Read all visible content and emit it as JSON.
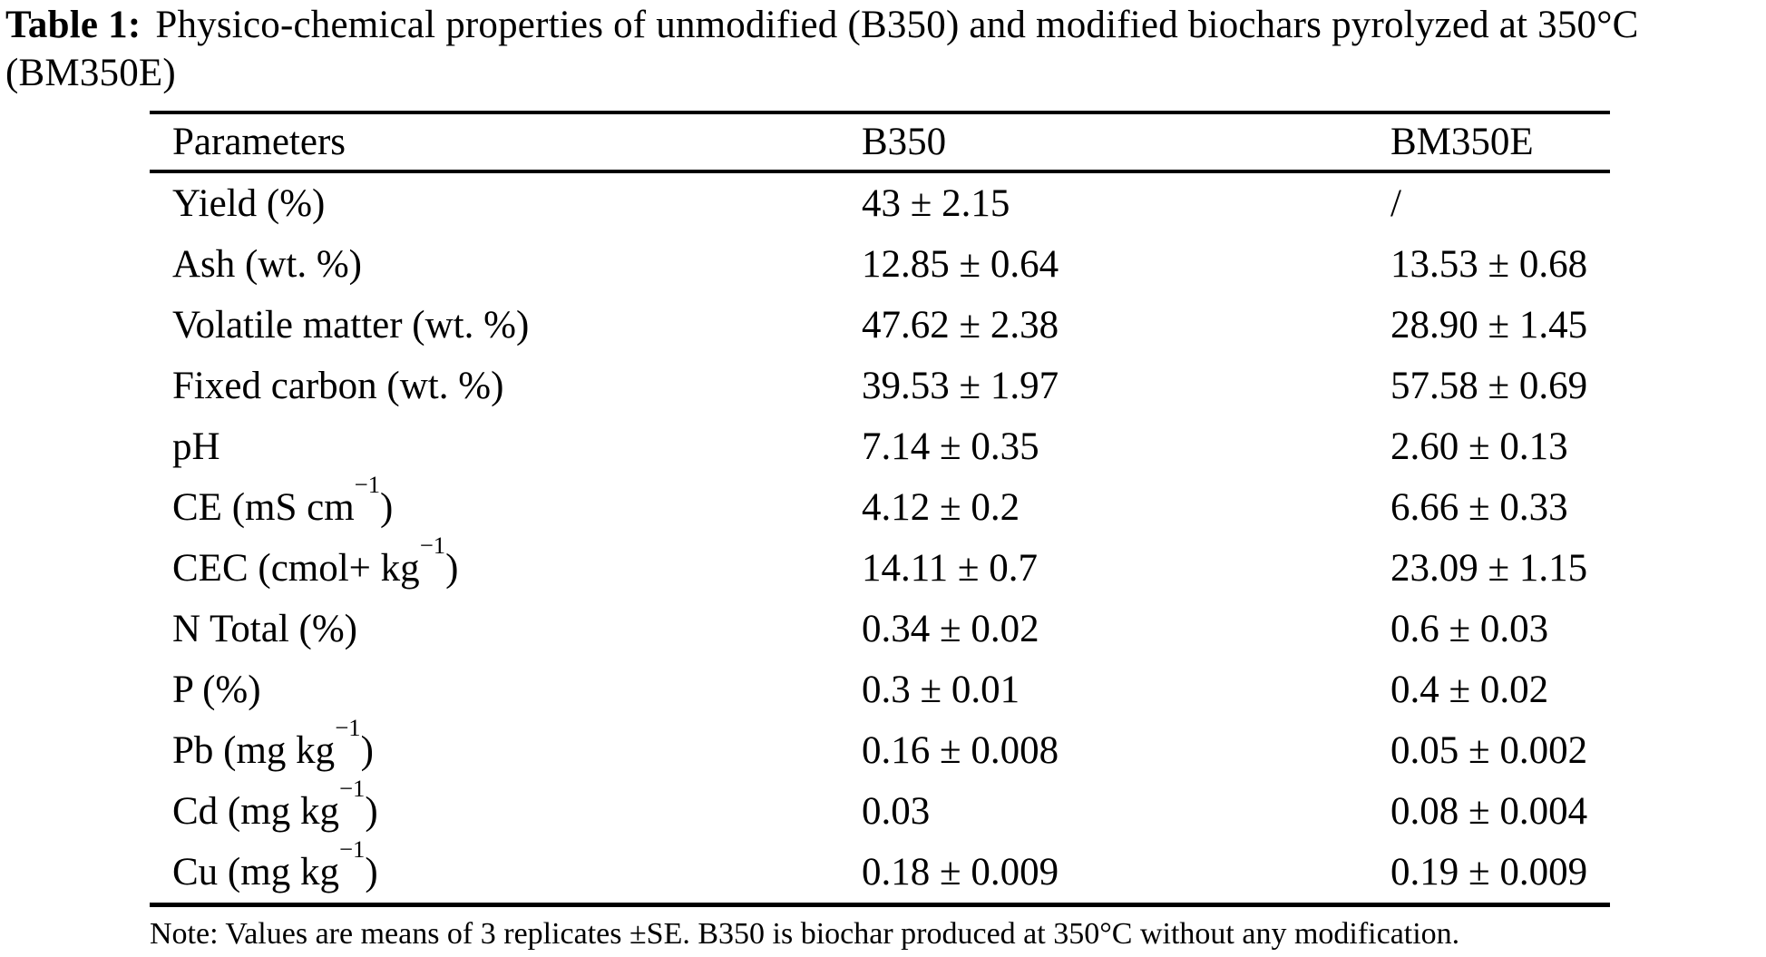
{
  "caption": {
    "label": "Table 1:",
    "line1": "Physico-chemical properties of unmodified (B350) and modified biochars pyrolyzed at 350°C",
    "line2": "(BM350E)"
  },
  "table": {
    "columns": [
      "Parameters",
      "B350",
      "BM350E"
    ],
    "rows": [
      {
        "name": "Yield (%)",
        "name_sup": "",
        "name_tail": "",
        "b350": "43 ± 2.15",
        "bm350e": "/"
      },
      {
        "name": "Ash (wt. %)",
        "name_sup": "",
        "name_tail": "",
        "b350": "12.85 ± 0.64",
        "bm350e": "13.53 ± 0.68"
      },
      {
        "name": "Volatile matter (wt. %)",
        "name_sup": "",
        "name_tail": "",
        "b350": "47.62 ± 2.38",
        "bm350e": "28.90 ± 1.45"
      },
      {
        "name": "Fixed carbon (wt. %)",
        "name_sup": "",
        "name_tail": "",
        "b350": "39.53 ± 1.97",
        "bm350e": "57.58 ± 0.69"
      },
      {
        "name": "pH",
        "name_sup": "",
        "name_tail": "",
        "b350": "7.14 ± 0.35",
        "bm350e": "2.60 ± 0.13"
      },
      {
        "name": "CE (mS cm",
        "name_sup": "−1",
        "name_tail": ")",
        "b350": "4.12 ± 0.2",
        "bm350e": "6.66 ± 0.33"
      },
      {
        "name": "CEC (cmol+ kg",
        "name_sup": "−1",
        "name_tail": ")",
        "b350": "14.11 ± 0.7",
        "bm350e": "23.09 ± 1.15"
      },
      {
        "name": "N Total (%)",
        "name_sup": "",
        "name_tail": "",
        "b350": "0.34 ± 0.02",
        "bm350e": "0.6 ± 0.03"
      },
      {
        "name": "P (%)",
        "name_sup": "",
        "name_tail": "",
        "b350": "0.3 ± 0.01",
        "bm350e": "0.4 ± 0.02"
      },
      {
        "name": "Pb (mg kg",
        "name_sup": "−1",
        "name_tail": ")",
        "b350": "0.16 ± 0.008",
        "bm350e": "0.05 ± 0.002"
      },
      {
        "name": "Cd (mg kg",
        "name_sup": "−1",
        "name_tail": ")",
        "b350": "0.03",
        "bm350e": "0.08 ± 0.004"
      },
      {
        "name": "Cu (mg kg",
        "name_sup": "−1",
        "name_tail": ")",
        "b350": "0.18 ± 0.009",
        "bm350e": "0.19 ± 0.009"
      }
    ]
  },
  "note": "Note: Values are means of 3 replicates ±SE. B350 is biochar produced at 350°C without any modification."
}
